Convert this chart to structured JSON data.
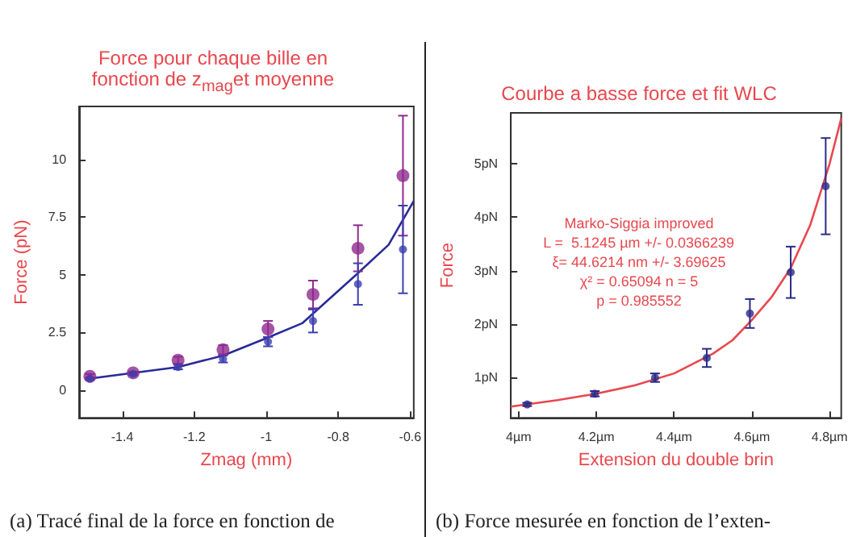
{
  "chart_data": [
    {
      "type": "scatter",
      "title": "Force pour chaque bille en fonction de z$_{mag}$et moyenne",
      "xlabel": "Zmag (mm)",
      "ylabel": "Force (pN)",
      "xlim": [
        -1.52,
        -0.59
      ],
      "xticks": [
        -1.4,
        -1.2,
        -1,
        -0.8,
        -0.6
      ],
      "ylim": [
        -1.2,
        12.3
      ],
      "yticks": [
        0,
        2.5,
        5,
        7.5,
        10
      ],
      "grid": false,
      "annotations": [
        "(a) Tracé final de la force en fonction de"
      ],
      "series": [
        {
          "marker": "circle",
          "color": "#8e2a8e",
          "x": [
            -1.49,
            -1.37,
            -1.245,
            -1.12,
            -0.995,
            -0.87,
            -0.745,
            -0.62
          ],
          "values": [
            0.6,
            0.75,
            1.3,
            1.75,
            2.65,
            4.15,
            6.15,
            9.3
          ],
          "errors": [
            0.1,
            0.05,
            0.15,
            0.2,
            0.35,
            0.6,
            1.0,
            2.6
          ]
        },
        {
          "marker": "circle",
          "color": "#3b3fb0",
          "x": [
            -1.49,
            -1.37,
            -1.245,
            -1.12,
            -0.995,
            -0.87,
            -0.745,
            -0.62
          ],
          "values": [
            0.5,
            0.7,
            1.0,
            1.35,
            2.1,
            3.0,
            4.6,
            6.1
          ],
          "errors": [
            0.05,
            0.05,
            0.1,
            0.15,
            0.2,
            0.5,
            0.9,
            1.9
          ]
        },
        {
          "type": "line",
          "marker": "none",
          "color": "#2a2a9a",
          "x": [
            -1.49,
            -1.37,
            -1.245,
            -1.12,
            -1.0,
            -0.9,
            -0.75,
            -0.66,
            -0.59
          ],
          "values": [
            0.5,
            0.75,
            1.0,
            1.5,
            2.25,
            2.9,
            5.0,
            6.3,
            8.2
          ]
        }
      ]
    },
    {
      "type": "scatter",
      "title": "Courbe a basse force et fit WLC",
      "xlabel": "Extension du double brin",
      "ylabel": "Force",
      "xlim": [
        3.98,
        4.83
      ],
      "xticks": [
        {
          "value": 4,
          "label": "4µm"
        },
        {
          "value": 4.2,
          "label": "4.2µm"
        },
        {
          "value": 4.4,
          "label": "4.4µm"
        },
        {
          "value": 4.6,
          "label": "4.6µm"
        },
        {
          "value": 4.8,
          "label": "4.8µm"
        }
      ],
      "ylim": [
        0.25,
        5.95
      ],
      "yticks": [
        {
          "value": 1,
          "label": "1pN"
        },
        {
          "value": 2,
          "label": "2pN"
        },
        {
          "value": 3,
          "label": "3pN"
        },
        {
          "value": 4,
          "label": "4pN"
        },
        {
          "value": 5,
          "label": "5pN"
        }
      ],
      "grid": false,
      "annotations": [
        "Marko-Siggia improved",
        "L =  5.1245 µm +/- 0.0366239",
        "ξ= 44.6214 nm +/- 3.69625",
        "χ² = 0.65094 n = 5",
        "p = 0.985552",
        "(b) Force mesurée en fonction de l’exten-"
      ],
      "series": [
        {
          "type": "line",
          "marker": "none",
          "color": "#e8474d",
          "x": [
            3.98,
            4.1,
            4.2,
            4.3,
            4.4,
            4.5,
            4.55,
            4.6,
            4.65,
            4.7,
            4.75,
            4.8,
            4.83
          ],
          "values": [
            0.46,
            0.58,
            0.7,
            0.86,
            1.08,
            1.45,
            1.7,
            2.08,
            2.5,
            3.05,
            3.85,
            5.0,
            5.85
          ]
        },
        {
          "marker": "circle",
          "color": "#2a2a8a",
          "x": [
            4.022,
            4.196,
            4.351,
            4.484,
            4.595,
            4.7,
            4.79
          ],
          "values": [
            0.5,
            0.7,
            1.0,
            1.37,
            2.2,
            2.97,
            4.58
          ],
          "errors": [
            0.03,
            0.05,
            0.08,
            0.17,
            0.27,
            0.48,
            0.9
          ]
        }
      ]
    }
  ]
}
